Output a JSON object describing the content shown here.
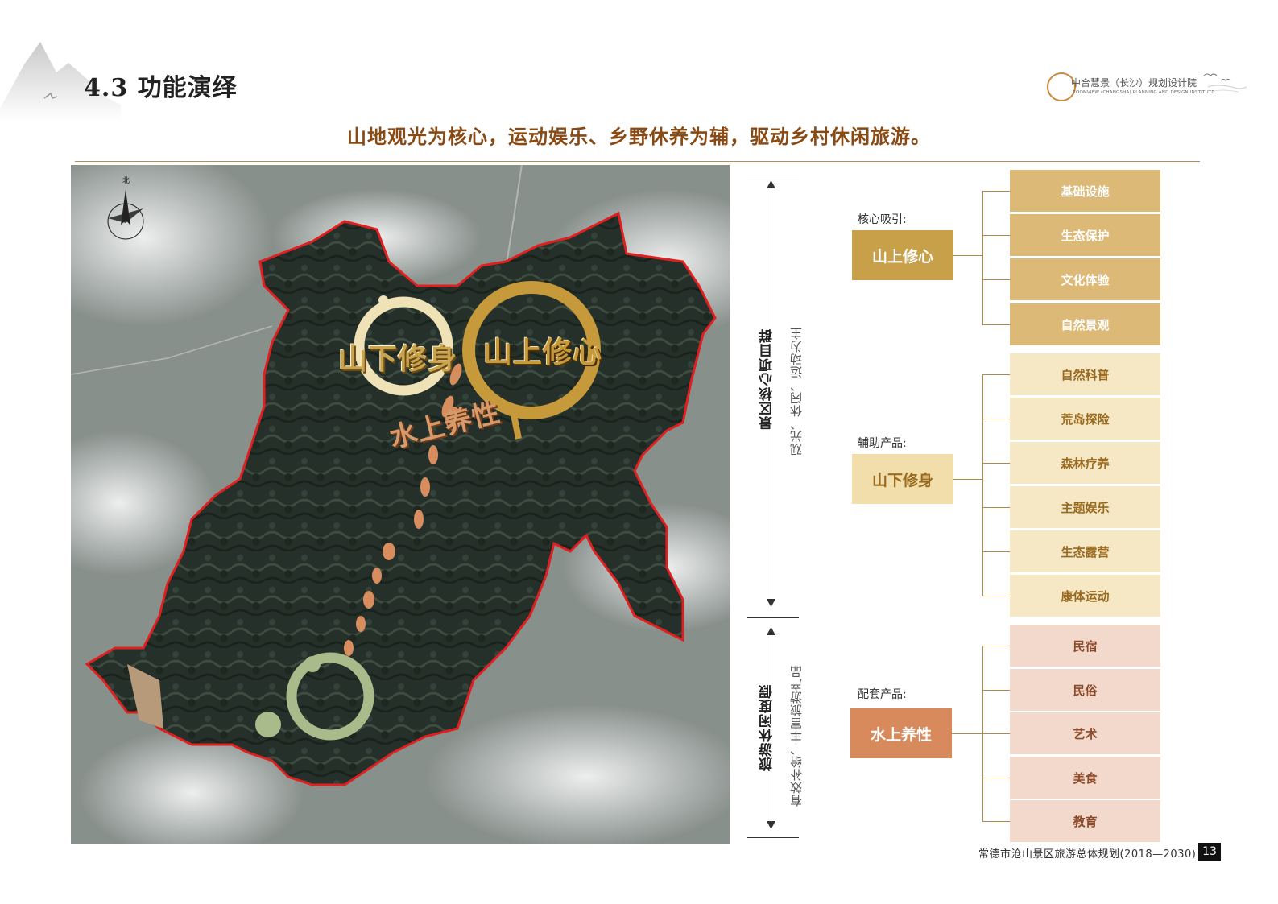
{
  "header": {
    "section_title": "4.3 功能演绎",
    "logo_name": "中合慧景（长沙）规划设计院",
    "logo_english": "ZOOMVIEW (CHANGSHA) PLANNING AND DESIGN INSTITUTE"
  },
  "subtitle": "山地观光为核心，运动娱乐、乡野休养为辅，驱动乡村休闲旅游。",
  "map": {
    "compass_label": "北",
    "label_xiashen": "山下修身",
    "label_shangxin": "山上修心",
    "label_shui": "水上养性"
  },
  "axis": {
    "upper_main": "景区核心项目群",
    "upper_sub": "观光、休闲、运动为主",
    "lower_main": "旅游休闲度假",
    "lower_sub": "有效补给、丰富旅游产品"
  },
  "groups": [
    {
      "label": "核心吸引:",
      "box": "山上修心",
      "items": [
        "基础设施",
        "生态保护",
        "文化体验",
        "自然景观"
      ]
    },
    {
      "label": "辅助产品:",
      "box": "山下修身",
      "items": [
        "自然科普",
        "荒岛探险",
        "森林疗养",
        "主题娱乐",
        "生态露营",
        "康体运动"
      ]
    },
    {
      "label": "配套产品:",
      "box": "水上养性",
      "items": [
        "民宿",
        "民俗",
        "艺术",
        "美食",
        "教育"
      ]
    }
  ],
  "colors": {
    "core_box": "#c9a04a",
    "core_item": "#ddb977",
    "aux_box": "#f2deaa",
    "aux_item": "#f6e8c5",
    "sup_box": "#d98a5c",
    "sup_item": "#f3d9cc",
    "title_brown": "#8a4a14"
  },
  "footer": {
    "doc_title": "常德市沧山景区旅游总体规划(2018—2030)",
    "page_number": "13"
  }
}
